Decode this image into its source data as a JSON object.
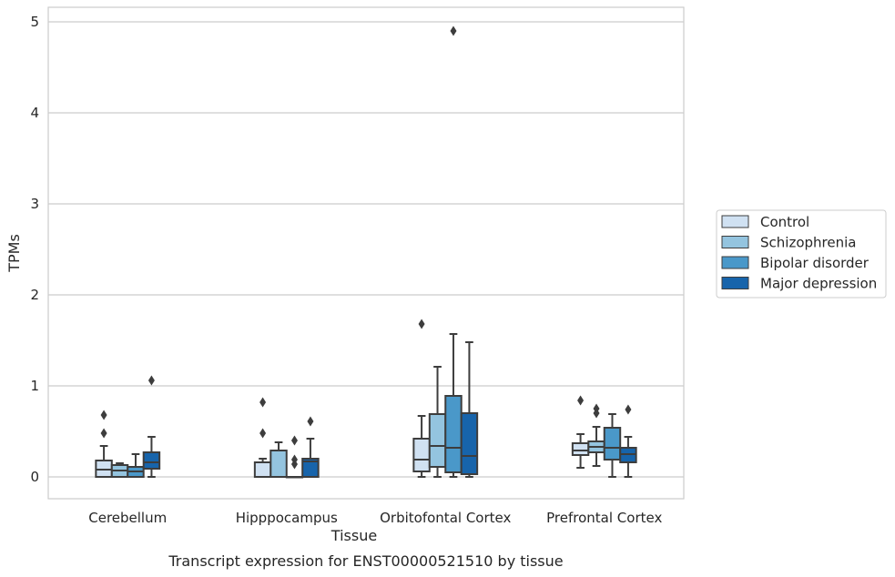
{
  "chart_data": {
    "type": "box",
    "title": "",
    "caption": "Transcript expression for ENST00000521510 by tissue",
    "xlabel": "Tissue",
    "ylabel": "TPMs",
    "ylim": [
      -0.24,
      5.16
    ],
    "yticks": [
      0,
      1,
      2,
      3,
      4,
      5
    ],
    "grid": true,
    "legend_position": "right",
    "categories": [
      "Cerebellum",
      "Hipppocampus",
      "Orbitofontal Cortex",
      "Prefrontal Cortex"
    ],
    "series": [
      {
        "name": "Control",
        "color": "#d0e1f2",
        "boxes": [
          {
            "whislo": 0,
            "q1": 0,
            "med": 0.08,
            "q3": 0.18,
            "whishi": 0.34,
            "fliers": [
              0.48,
              0.68
            ]
          },
          {
            "whislo": 0,
            "q1": 0,
            "med": 0,
            "q3": 0.16,
            "whishi": 0.2,
            "fliers": [
              0.48,
              0.82
            ]
          },
          {
            "whislo": 0,
            "q1": 0.06,
            "med": 0.19,
            "q3": 0.42,
            "whishi": 0.67,
            "fliers": [
              1.68
            ]
          },
          {
            "whislo": 0.1,
            "q1": 0.24,
            "med": 0.29,
            "q3": 0.37,
            "whishi": 0.47,
            "fliers": [
              0.84
            ]
          }
        ]
      },
      {
        "name": "Schizophrenia",
        "color": "#94c4df",
        "boxes": [
          {
            "whislo": 0,
            "q1": 0,
            "med": 0.07,
            "q3": 0.13,
            "whishi": 0.15,
            "fliers": []
          },
          {
            "whislo": 0,
            "q1": 0,
            "med": 0,
            "q3": 0.29,
            "whishi": 0.38,
            "fliers": []
          },
          {
            "whislo": 0,
            "q1": 0.11,
            "med": 0.34,
            "q3": 0.69,
            "whishi": 1.21,
            "fliers": []
          },
          {
            "whislo": 0.12,
            "q1": 0.27,
            "med": 0.33,
            "q3": 0.39,
            "whishi": 0.55,
            "fliers": [
              0.7,
              0.75
            ]
          }
        ]
      },
      {
        "name": "Bipolar disorder",
        "color": "#4a98c9",
        "boxes": [
          {
            "whislo": 0,
            "q1": 0,
            "med": 0.06,
            "q3": 0.11,
            "whishi": 0.25,
            "fliers": []
          },
          {
            "whislo": 0,
            "q1": 0,
            "med": 0,
            "q3": 0,
            "whishi": 0,
            "fliers": [
              0.14,
              0.19,
              0.4
            ]
          },
          {
            "whislo": 0,
            "q1": 0.05,
            "med": 0.32,
            "q3": 0.89,
            "whishi": 1.57,
            "fliers": [
              4.9
            ]
          },
          {
            "whislo": 0,
            "q1": 0.19,
            "med": 0.32,
            "q3": 0.54,
            "whishi": 0.69,
            "fliers": []
          }
        ]
      },
      {
        "name": "Major depression",
        "color": "#1764ab",
        "boxes": [
          {
            "whislo": 0,
            "q1": 0.09,
            "med": 0.16,
            "q3": 0.27,
            "whishi": 0.44,
            "fliers": [
              1.06
            ]
          },
          {
            "whislo": 0,
            "q1": 0,
            "med": 0.17,
            "q3": 0.2,
            "whishi": 0.42,
            "fliers": [
              0.61
            ]
          },
          {
            "whislo": 0,
            "q1": 0.03,
            "med": 0.23,
            "q3": 0.7,
            "whishi": 1.48,
            "fliers": []
          },
          {
            "whislo": 0,
            "q1": 0.16,
            "med": 0.25,
            "q3": 0.32,
            "whishi": 0.44,
            "fliers": [
              0.74
            ]
          }
        ]
      }
    ]
  }
}
